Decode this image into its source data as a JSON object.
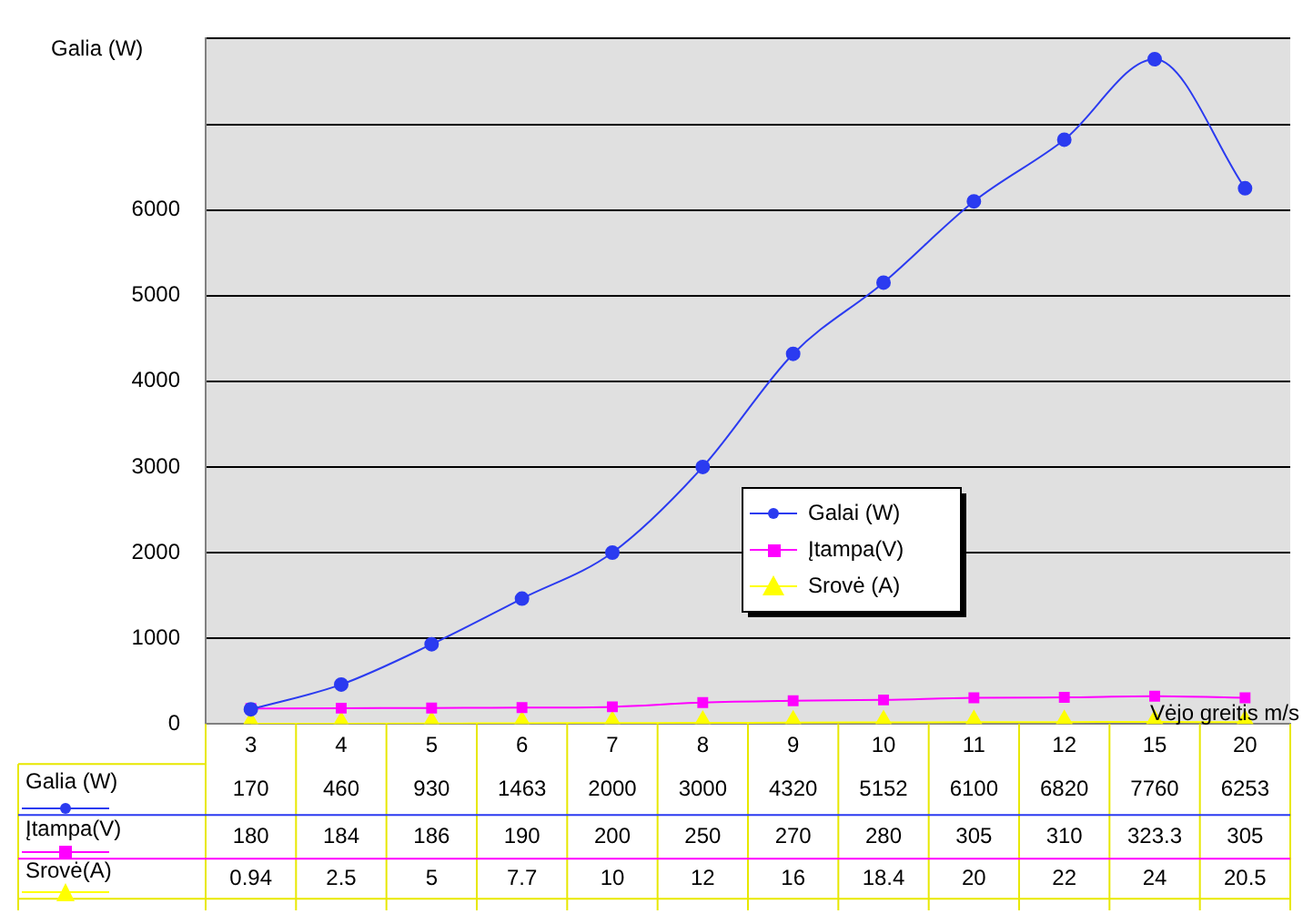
{
  "chart_data": {
    "type": "line",
    "ylabel": "Galia (W)",
    "xlabel": "Vėjo greitis m/s",
    "categories": [
      "3",
      "4",
      "5",
      "6",
      "7",
      "8",
      "9",
      "10",
      "11",
      "12",
      "15",
      "20"
    ],
    "series": [
      {
        "name": "Galai (W)",
        "color": "#2b3bf0",
        "marker": "circle",
        "values": [
          170,
          460,
          930,
          1463,
          2000,
          3000,
          4320,
          5152,
          6100,
          6820,
          7760,
          6253
        ]
      },
      {
        "name": "Įtampa(V)",
        "color": "#ff00ff",
        "marker": "square",
        "values": [
          180,
          184,
          186,
          190,
          200,
          250,
          270,
          280,
          305,
          310,
          323.3,
          305
        ]
      },
      {
        "name": "Srovė (A)",
        "color": "#ffff00",
        "marker": "triangle",
        "values": [
          0.94,
          2.5,
          5,
          7.7,
          10,
          12,
          16,
          18.4,
          20,
          22,
          24,
          20.5
        ]
      }
    ],
    "annotations": [
      "Galia (W)",
      "Įtampa(V)",
      "Srovė(A)"
    ],
    "ylim": [
      0,
      8000
    ],
    "yticks": [
      0,
      1000,
      2000,
      3000,
      4000,
      5000,
      6000,
      {
        "value": 7000,
        "label": null
      },
      {
        "value": 8000,
        "label": null
      }
    ],
    "grid": "y",
    "legend": "bottom",
    "data_labels": true
  }
}
